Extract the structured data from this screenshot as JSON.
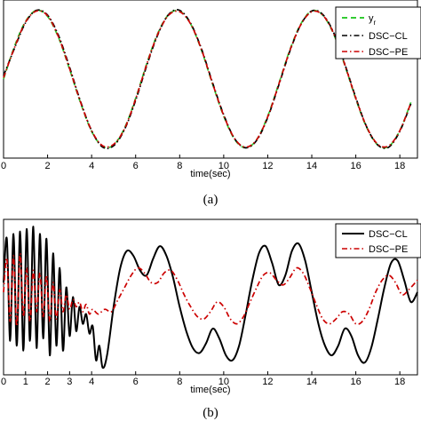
{
  "chart_data": [
    {
      "type": "line",
      "caption": "(a)",
      "xlabel": "time(sec)",
      "ylabel": "",
      "xlim": [
        0,
        18.8
      ],
      "ylim": [
        -1.15,
        1.15
      ],
      "xticks": [
        0,
        2,
        4,
        6,
        8,
        10,
        12,
        14,
        16,
        18
      ],
      "xtick_labels": [
        "0",
        "2",
        "4",
        "6",
        "8",
        "10",
        "12",
        "14",
        "16",
        "18"
      ],
      "grid": false,
      "legend_position": "top-right",
      "series": [
        {
          "name": "y_r",
          "color": "#33cc33",
          "dash": "dashed",
          "x": [
            0,
            0.5,
            1,
            1.5,
            2,
            2.5,
            3,
            3.5,
            4,
            4.5,
            5,
            5.5,
            6,
            6.5,
            7,
            7.5,
            8,
            8.5,
            9,
            9.5,
            10,
            10.5,
            11,
            11.5,
            12,
            12.5,
            13,
            13.5,
            14,
            14.5,
            15,
            15.5,
            16,
            16.5,
            17,
            17.5,
            18,
            18.5
          ],
          "y": [
            0,
            0.48,
            0.84,
            1,
            0.91,
            0.6,
            0.14,
            -0.35,
            -0.76,
            -0.98,
            -0.96,
            -0.71,
            -0.28,
            0.22,
            0.66,
            0.94,
            0.99,
            0.8,
            0.41,
            -0.08,
            -0.54,
            -0.88,
            -1,
            -0.88,
            -0.54,
            -0.07,
            0.42,
            0.8,
            0.99,
            0.93,
            0.65,
            0.2,
            -0.29,
            -0.71,
            -0.96,
            -0.98,
            -0.75,
            -0.34
          ]
        },
        {
          "name": "DSC−CL",
          "color": "#000000",
          "dash": "dashdot",
          "x": [
            0,
            0.5,
            1,
            1.5,
            2,
            2.5,
            3,
            3.5,
            4,
            4.5,
            5,
            5.5,
            6,
            6.5,
            7,
            7.5,
            8,
            8.5,
            9,
            9.5,
            10,
            10.5,
            11,
            11.5,
            12,
            12.5,
            13,
            13.5,
            14,
            14.5,
            15,
            15.5,
            16,
            16.5,
            17,
            17.5,
            18,
            18.5
          ],
          "y": [
            0.05,
            0.45,
            0.82,
            1,
            0.93,
            0.63,
            0.17,
            -0.33,
            -0.75,
            -0.99,
            -0.97,
            -0.73,
            -0.31,
            0.19,
            0.64,
            0.94,
            1,
            0.81,
            0.43,
            -0.06,
            -0.52,
            -0.87,
            -1,
            -0.89,
            -0.56,
            -0.09,
            0.4,
            0.79,
            0.99,
            0.94,
            0.67,
            0.22,
            -0.27,
            -0.7,
            -0.96,
            -0.99,
            -0.76,
            -0.36
          ]
        },
        {
          "name": "DSC−PE",
          "color": "#cc0000",
          "dash": "dashdot",
          "x": [
            0,
            0.5,
            1,
            1.5,
            2,
            2.5,
            3,
            3.5,
            4,
            4.5,
            5,
            5.5,
            6,
            6.5,
            7,
            7.5,
            8,
            8.5,
            9,
            9.5,
            10,
            10.5,
            11,
            11.5,
            12,
            12.5,
            13,
            13.5,
            14,
            14.5,
            15,
            15.5,
            16,
            16.5,
            17,
            17.5,
            18,
            18.5
          ],
          "y": [
            0.02,
            0.46,
            0.83,
            0.99,
            0.92,
            0.61,
            0.15,
            -0.34,
            -0.75,
            -0.97,
            -0.95,
            -0.72,
            -0.29,
            0.21,
            0.65,
            0.93,
            0.98,
            0.8,
            0.42,
            -0.07,
            -0.53,
            -0.87,
            -0.99,
            -0.88,
            -0.55,
            -0.08,
            0.41,
            0.79,
            0.98,
            0.93,
            0.66,
            0.21,
            -0.28,
            -0.7,
            -0.95,
            -0.97,
            -0.75,
            -0.35
          ]
        }
      ]
    },
    {
      "type": "line",
      "caption": "(b)",
      "xlabel": "time(sec)",
      "ylabel": "",
      "xlim": [
        0,
        18.8
      ],
      "ylim": [
        -1.6,
        1.6
      ],
      "xticks": [
        0,
        1,
        2,
        3,
        4,
        6,
        8,
        10,
        12,
        14,
        16,
        18
      ],
      "xtick_labels": [
        "0",
        "1",
        "2",
        "3",
        "4",
        "6",
        "8",
        "10",
        "12",
        "14",
        "16",
        "18"
      ],
      "grid": false,
      "legend_position": "top-right",
      "series": [
        {
          "name": "DSC−CL",
          "color": "#000000",
          "dash": "solid",
          "x": [
            0,
            0.15,
            0.3,
            0.45,
            0.6,
            0.75,
            0.9,
            1.05,
            1.2,
            1.35,
            1.5,
            1.65,
            1.8,
            1.95,
            2.1,
            2.25,
            2.4,
            2.55,
            2.7,
            2.85,
            3,
            3.15,
            3.3,
            3.45,
            3.6,
            3.75,
            3.9,
            4.05,
            4.2,
            4.35,
            4.5,
            4.7,
            5,
            5.3,
            5.6,
            5.9,
            6.2,
            6.5,
            6.8,
            7.1,
            7.4,
            7.7,
            8,
            8.3,
            8.6,
            8.9,
            9.2,
            9.5,
            9.8,
            10.1,
            10.4,
            10.7,
            11,
            11.3,
            11.6,
            11.9,
            12.2,
            12.5,
            12.8,
            13.1,
            13.4,
            13.7,
            14,
            14.3,
            14.6,
            14.9,
            15.2,
            15.5,
            15.8,
            16.1,
            16.4,
            16.7,
            17,
            17.3,
            17.6,
            17.9,
            18.2,
            18.5,
            18.8
          ],
          "y": [
            0.3,
            1.2,
            -0.9,
            1.3,
            -1.0,
            1.35,
            -1.1,
            1.4,
            -0.9,
            1.45,
            -1.05,
            1.3,
            -0.85,
            1.2,
            -1.2,
            0.9,
            -1.0,
            0.6,
            -1.1,
            0.2,
            -0.8,
            0,
            -0.7,
            -0.2,
            -0.55,
            -0.35,
            -0.75,
            -0.6,
            -1.3,
            -1.0,
            -1.45,
            -1.2,
            -0.2,
            0.6,
            0.95,
            0.85,
            0.55,
            0.45,
            0.8,
            1.05,
            0.85,
            0.4,
            -0.2,
            -0.7,
            -1.05,
            -1.15,
            -0.95,
            -0.65,
            -0.85,
            -1.2,
            -1.3,
            -1.0,
            -0.35,
            0.35,
            0.9,
            1.05,
            0.7,
            0.25,
            0.45,
            0.95,
            1.1,
            0.75,
            0.1,
            -0.55,
            -1.0,
            -1.2,
            -1.0,
            -0.65,
            -0.8,
            -1.2,
            -1.35,
            -1.05,
            -0.45,
            0.2,
            0.7,
            0.75,
            0.35,
            -0.1,
            0.1
          ]
        },
        {
          "name": "DSC−PE",
          "color": "#cc0000",
          "dash": "dashdot",
          "x": [
            0,
            0.15,
            0.3,
            0.45,
            0.6,
            0.75,
            0.9,
            1.05,
            1.2,
            1.35,
            1.5,
            1.65,
            1.8,
            1.95,
            2.1,
            2.25,
            2.4,
            2.55,
            2.7,
            2.85,
            3,
            3.15,
            3.3,
            3.45,
            3.6,
            3.75,
            3.9,
            4.05,
            4.3,
            4.6,
            4.9,
            5.2,
            5.5,
            5.8,
            6.1,
            6.4,
            6.7,
            7,
            7.3,
            7.6,
            7.9,
            8.2,
            8.5,
            8.8,
            9.1,
            9.4,
            9.7,
            10,
            10.3,
            10.6,
            10.9,
            11.2,
            11.5,
            11.8,
            12.1,
            12.4,
            12.7,
            13,
            13.3,
            13.6,
            13.9,
            14.2,
            14.5,
            14.8,
            15.1,
            15.4,
            15.7,
            16,
            16.3,
            16.6,
            16.9,
            17.2,
            17.5,
            17.8,
            18.1,
            18.4,
            18.8
          ],
          "y": [
            0.1,
            0.8,
            -0.5,
            0.85,
            -0.6,
            0.9,
            -0.4,
            0.6,
            -0.5,
            0.55,
            -0.3,
            0.5,
            -0.4,
            0.45,
            -0.5,
            0.3,
            -0.45,
            0.15,
            -0.3,
            0.05,
            -0.25,
            -0.05,
            -0.2,
            -0.1,
            -0.3,
            -0.15,
            -0.35,
            -0.25,
            -0.35,
            -0.25,
            -0.3,
            -0.05,
            0.2,
            0.45,
            0.6,
            0.5,
            0.3,
            0.3,
            0.5,
            0.55,
            0.35,
            0.05,
            -0.2,
            -0.4,
            -0.45,
            -0.3,
            -0.1,
            -0.2,
            -0.45,
            -0.55,
            -0.4,
            -0.1,
            0.2,
            0.45,
            0.5,
            0.35,
            0.25,
            0.4,
            0.6,
            0.5,
            0.2,
            -0.15,
            -0.45,
            -0.55,
            -0.45,
            -0.3,
            -0.35,
            -0.55,
            -0.5,
            -0.25,
            0.1,
            0.35,
            0.45,
            0.3,
            0.05,
            0.15,
            0.35
          ]
        }
      ]
    }
  ]
}
